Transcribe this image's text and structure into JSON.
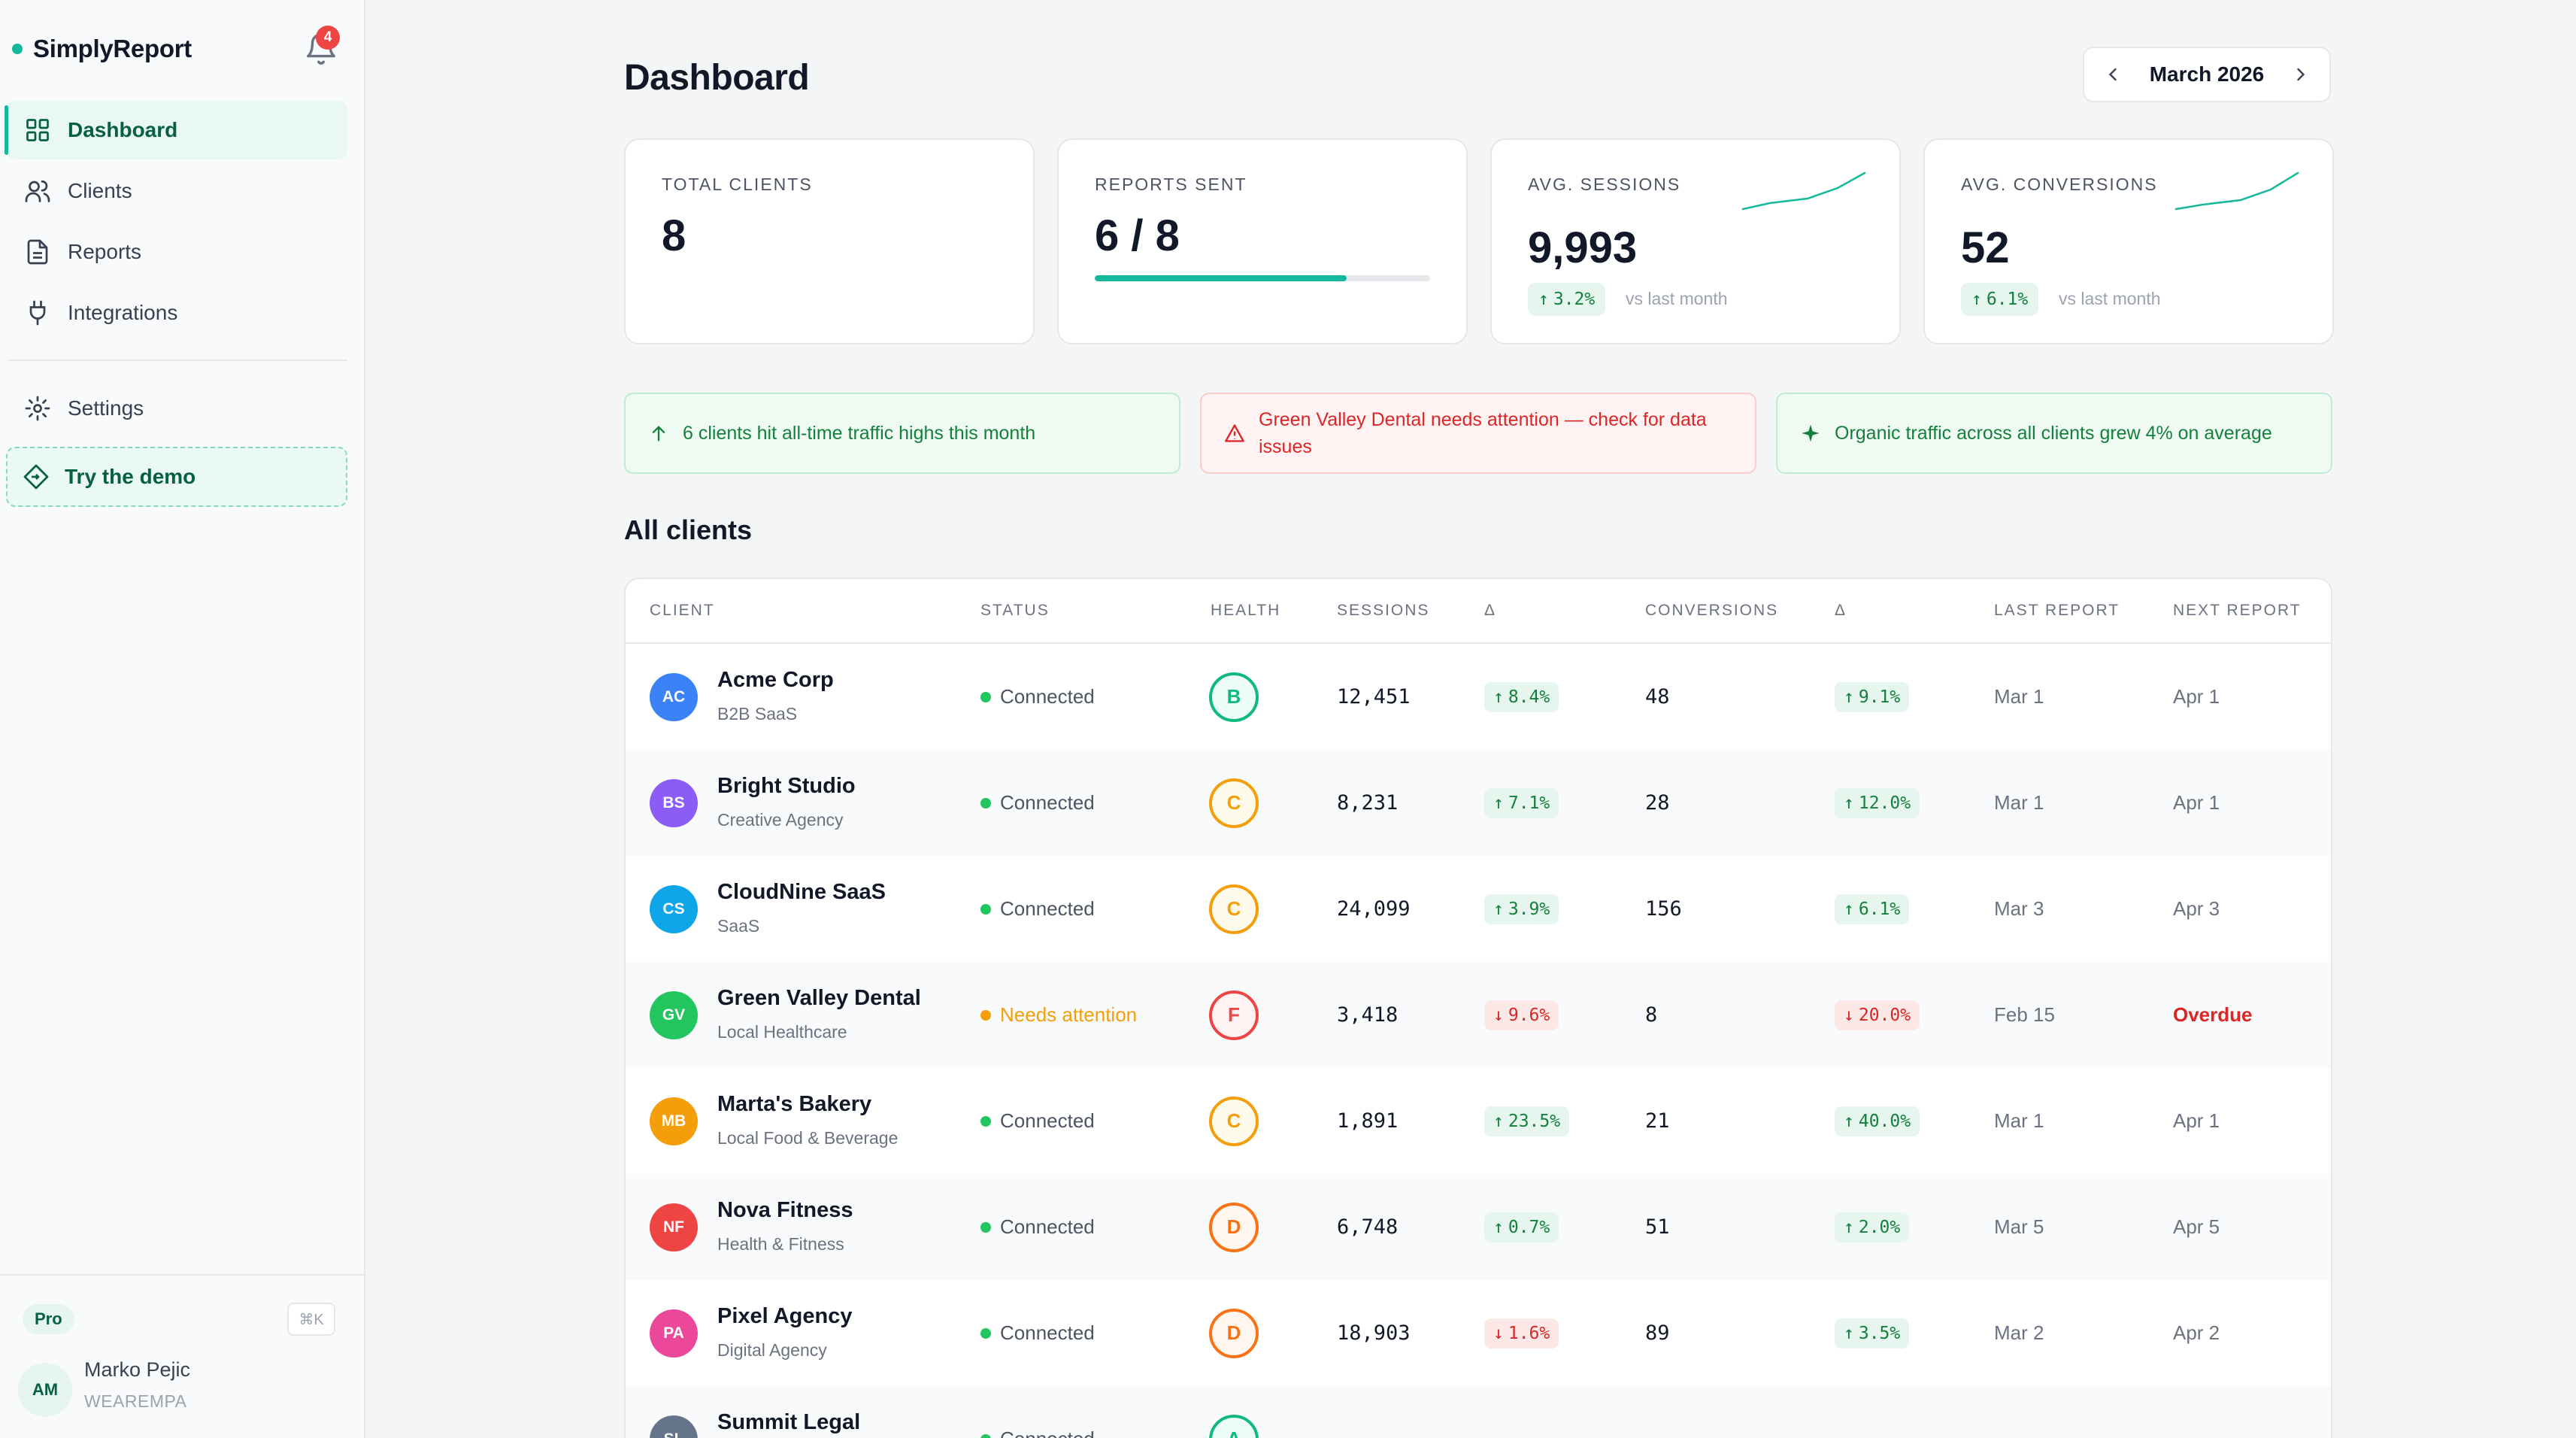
{
  "app": {
    "name": "SimplyReport",
    "notifications": "4"
  },
  "sidebar": {
    "items": [
      {
        "label": "Dashboard",
        "icon": "grid-icon"
      },
      {
        "label": "Clients",
        "icon": "users-icon"
      },
      {
        "label": "Reports",
        "icon": "file-icon"
      },
      {
        "label": "Integrations",
        "icon": "plug-icon"
      }
    ],
    "settings": "Settings",
    "demo": "Try the demo",
    "plan": "Pro",
    "shortcut": "⌘K",
    "user": {
      "initials": "AM",
      "name": "Marko Pejic",
      "org": "WEAREMPA"
    }
  },
  "header": {
    "title": "Dashboard",
    "month": "March 2026"
  },
  "stats": {
    "total_clients": {
      "label": "TOTAL CLIENTS",
      "value": "8"
    },
    "reports_sent": {
      "label": "REPORTS SENT",
      "value": "6 / 8",
      "progress": 0.75
    },
    "avg_sessions": {
      "label": "AVG. SESSIONS",
      "value": "9,993",
      "delta": "3.2%",
      "vs": "vs last month"
    },
    "avg_conversions": {
      "label": "AVG. CONVERSIONS",
      "value": "52",
      "delta": "6.1%",
      "vs": "vs last month"
    }
  },
  "alerts": [
    {
      "text": "6 clients hit all-time traffic highs this month",
      "kind": "ok"
    },
    {
      "text": "Green Valley Dental needs attention — check for data issues",
      "kind": "bad"
    },
    {
      "text": "Organic traffic across all clients grew 4% on average",
      "kind": "ok"
    }
  ],
  "clients_section": {
    "title": "All clients",
    "columns": [
      "CLIENT",
      "STATUS",
      "HEALTH",
      "SESSIONS",
      "Δ",
      "CONVERSIONS",
      "Δ",
      "LAST REPORT",
      "NEXT REPORT"
    ],
    "rows": [
      {
        "initials": "AC",
        "color": "#3b82f6",
        "name": "Acme Corp",
        "type": "B2B SaaS",
        "status": "Connected",
        "grade": "B",
        "sessions": "12,451",
        "s_delta": "8.4%",
        "s_dir": "up",
        "conversions": "48",
        "c_delta": "9.1%",
        "c_dir": "up",
        "last": "Mar 1",
        "next": "Apr 1"
      },
      {
        "initials": "BS",
        "color": "#8b5cf6",
        "name": "Bright Studio",
        "type": "Creative Agency",
        "status": "Connected",
        "grade": "C",
        "sessions": "8,231",
        "s_delta": "7.1%",
        "s_dir": "up",
        "conversions": "28",
        "c_delta": "12.0%",
        "c_dir": "up",
        "last": "Mar 1",
        "next": "Apr 1"
      },
      {
        "initials": "CS",
        "color": "#0ea5e9",
        "name": "CloudNine SaaS",
        "type": "SaaS",
        "status": "Connected",
        "grade": "C",
        "sessions": "24,099",
        "s_delta": "3.9%",
        "s_dir": "up",
        "conversions": "156",
        "c_delta": "6.1%",
        "c_dir": "up",
        "last": "Mar 3",
        "next": "Apr 3"
      },
      {
        "initials": "GV",
        "color": "#22c55e",
        "name": "Green Valley Dental",
        "type": "Local Healthcare",
        "status": "Needs attention",
        "grade": "F",
        "sessions": "3,418",
        "s_delta": "9.6%",
        "s_dir": "down",
        "conversions": "8",
        "c_delta": "20.0%",
        "c_dir": "down",
        "last": "Feb 15",
        "next": "Overdue"
      },
      {
        "initials": "MB",
        "color": "#f59e0b",
        "name": "Marta's Bakery",
        "type": "Local Food & Beverage",
        "status": "Connected",
        "grade": "C",
        "sessions": "1,891",
        "s_delta": "23.5%",
        "s_dir": "up",
        "conversions": "21",
        "c_delta": "40.0%",
        "c_dir": "up",
        "last": "Mar 1",
        "next": "Apr 1"
      },
      {
        "initials": "NF",
        "color": "#ef4444",
        "name": "Nova Fitness",
        "type": "Health & Fitness",
        "status": "Connected",
        "grade": "D",
        "sessions": "6,748",
        "s_delta": "0.7%",
        "s_dir": "up",
        "conversions": "51",
        "c_delta": "2.0%",
        "c_dir": "up",
        "last": "Mar 5",
        "next": "Apr 5"
      },
      {
        "initials": "PA",
        "color": "#ec4899",
        "name": "Pixel Agency",
        "type": "Digital Agency",
        "status": "Connected",
        "grade": "D",
        "sessions": "18,903",
        "s_delta": "1.6%",
        "s_dir": "down",
        "conversions": "89",
        "c_delta": "3.5%",
        "c_dir": "up",
        "last": "Mar 2",
        "next": "Apr 2"
      },
      {
        "initials": "SL",
        "color": "#64748b",
        "name": "Summit Legal",
        "type": "",
        "status": "Connected",
        "grade": "A",
        "sessions": "",
        "s_delta": "",
        "s_dir": "up",
        "conversions": "",
        "c_delta": "",
        "c_dir": "up",
        "last": "",
        "next": ""
      }
    ]
  }
}
